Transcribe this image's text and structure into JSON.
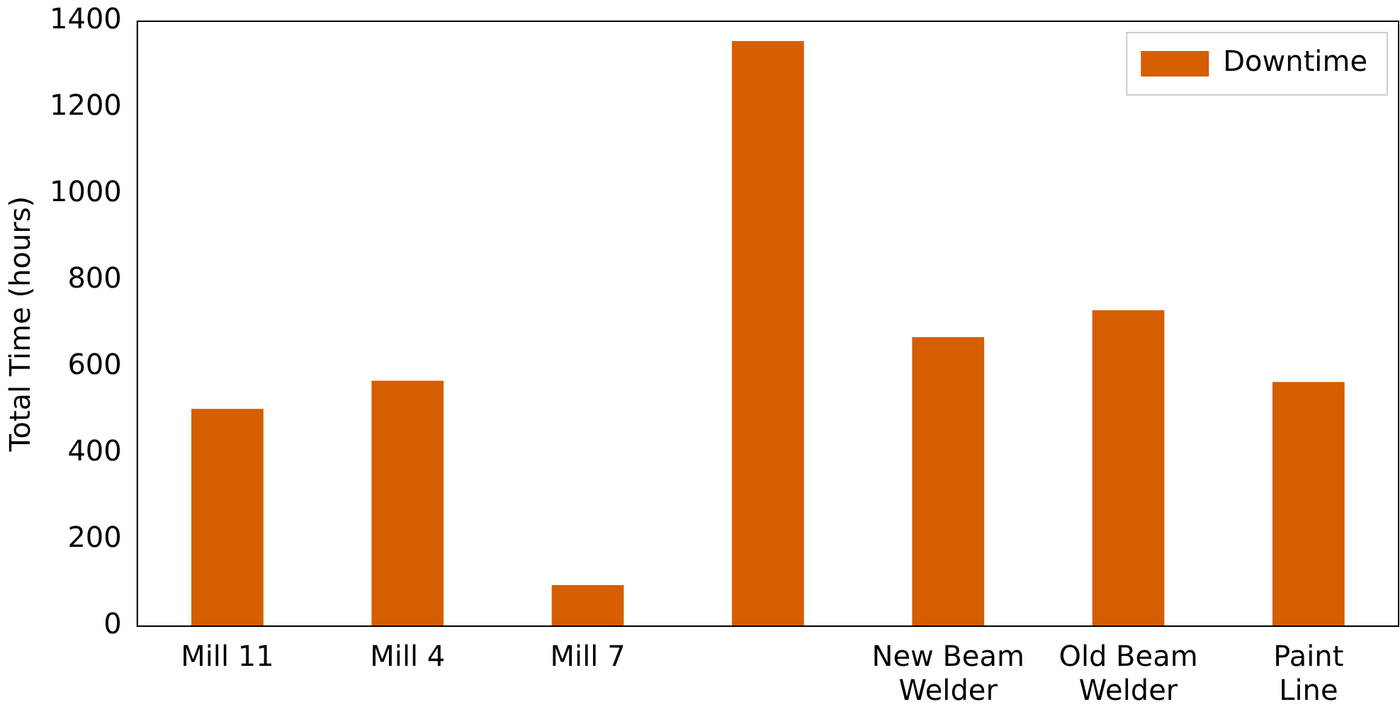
{
  "chart_data": {
    "type": "bar",
    "ylabel": "Total Time (hours)",
    "categories": [
      "Mill 11",
      "Mill 4",
      "Mill 7",
      null,
      "New Beam\nWelder",
      "Old Beam\nWelder",
      "Paint\nLine"
    ],
    "series": [
      {
        "name": "Downtime",
        "color": "#d55e00",
        "values": [
          503,
          568,
          95,
          1354,
          669,
          731,
          565
        ]
      }
    ],
    "ylim": [
      0,
      1400
    ],
    "yticks": [
      0,
      200,
      400,
      600,
      800,
      1000,
      1200,
      1400
    ],
    "grid": false,
    "legend": "top right"
  }
}
